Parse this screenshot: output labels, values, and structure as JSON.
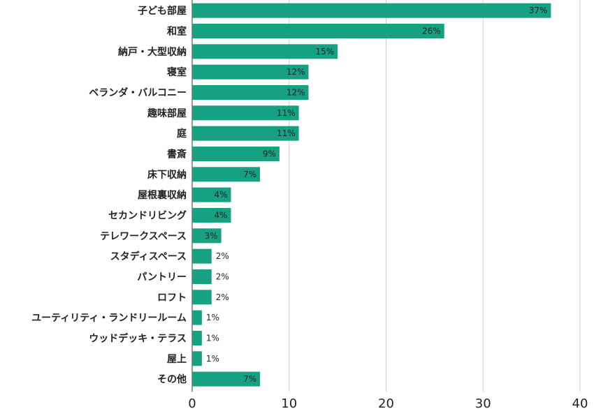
{
  "chart_data": {
    "type": "bar",
    "orientation": "horizontal",
    "title": "",
    "xlabel": "",
    "ylabel": "",
    "categories": [
      "子ども部屋",
      "和室",
      "納戸・大型収納",
      "寝室",
      "ベランダ・バルコニー",
      "趣味部屋",
      "庭",
      "書斎",
      "床下収納",
      "屋根裏収納",
      "セカンドリビング",
      "テレワークスペース",
      "スタディスペース",
      "パントリー",
      "ロフト",
      "ユーティリティ・ランドリールーム",
      "ウッドデッキ・テラス",
      "屋上",
      "その他"
    ],
    "values": [
      37,
      26,
      15,
      12,
      12,
      11,
      11,
      9,
      7,
      4,
      4,
      3,
      2,
      2,
      2,
      1,
      1,
      1,
      7
    ],
    "value_labels": [
      "37%",
      "26%",
      "15%",
      "12%",
      "12%",
      "11%",
      "11%",
      "9%",
      "7%",
      "4%",
      "4%",
      "3%",
      "2%",
      "2%",
      "2%",
      "1%",
      "1%",
      "1%",
      "7%"
    ],
    "xlim": [
      0,
      40
    ],
    "xticks": [
      0,
      10,
      20,
      30,
      40
    ],
    "xtick_labels": [
      "0",
      "10",
      "20",
      "30",
      "40"
    ],
    "grid": "vertical",
    "legend": "none",
    "colors": {
      "bar": "#17a183",
      "grid": "#cfcfcf",
      "text": "#222222"
    }
  }
}
